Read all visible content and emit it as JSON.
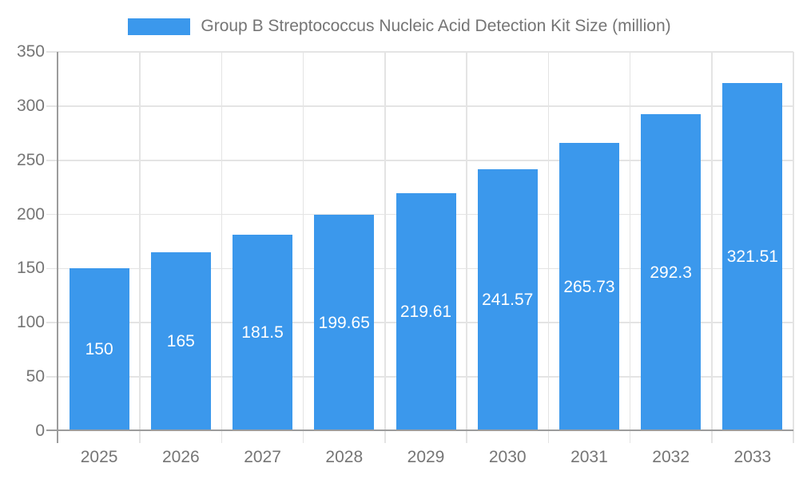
{
  "chart_data": {
    "type": "bar",
    "title": "Group B Streptococcus Nucleic Acid Detection Kit Size (million)",
    "legend_position": "top-center",
    "categories": [
      "2025",
      "2026",
      "2027",
      "2028",
      "2029",
      "2030",
      "2031",
      "2032",
      "2033"
    ],
    "values": [
      150,
      165,
      181.5,
      199.65,
      219.61,
      241.57,
      265.73,
      292.3,
      321.51
    ],
    "value_labels": [
      "150",
      "165",
      "181.5",
      "199.65",
      "219.61",
      "241.57",
      "265.73",
      "292.3",
      "321.51"
    ],
    "xlabel": "",
    "ylabel": "",
    "ylim": [
      0,
      350
    ],
    "yticks": [
      0,
      50,
      100,
      150,
      200,
      250,
      300,
      350
    ],
    "grid": true,
    "colors": {
      "bar": "#3B98EC",
      "value_label_text": "#FFFFFF",
      "axis_text": "#757575",
      "grid_line": "#E4E4E4",
      "axis_line": "#9C9C9C",
      "background": "#FFFFFF"
    }
  }
}
